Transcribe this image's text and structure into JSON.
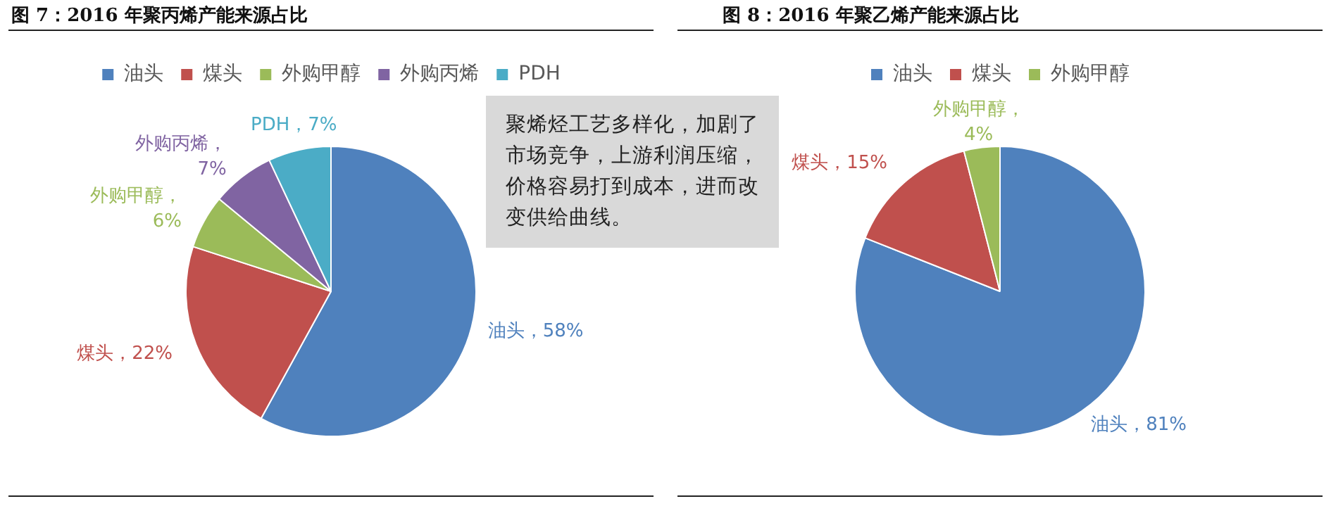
{
  "chart_data": [
    {
      "type": "pie",
      "title": "图 7：2016 年聚丙烯产能来源占比",
      "categories": [
        "油头",
        "煤头",
        "外购甲醇",
        "外购丙烯",
        "PDH"
      ],
      "values": [
        58,
        22,
        6,
        7,
        7
      ],
      "colors": [
        "#4f81bd",
        "#c0504d",
        "#9bbb59",
        "#8064a2",
        "#4bacc6"
      ],
      "value_labels": [
        "油头，58%",
        "煤头，22%",
        "外购甲醇，6%",
        "外购丙烯，7%",
        "PDH，7%"
      ],
      "legend": "top"
    },
    {
      "type": "other",
      "annotations": [
        "聚烯烃工艺多样化，加剧了市场竞争，上游利润压缩，价格容易打到成本，进而改变供给曲线。"
      ]
    },
    {
      "type": "pie",
      "title": "图 8：2016 年聚乙烯产能来源占比",
      "categories": [
        "油头",
        "煤头",
        "外购甲醇"
      ],
      "values": [
        81,
        15,
        4
      ],
      "colors": [
        "#4f81bd",
        "#c0504d",
        "#9bbb59"
      ],
      "value_labels": [
        "油头，81%",
        "煤头，15%",
        "外购甲醇，4%"
      ],
      "legend": "top"
    }
  ]
}
